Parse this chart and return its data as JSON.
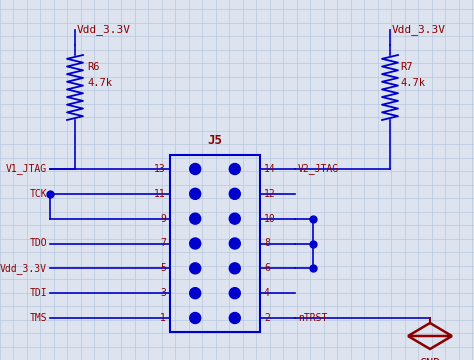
{
  "bg_color": "#dde4f0",
  "grid_color": "#b8c8e0",
  "wire_color": "#0000cc",
  "label_color": "#8b0000",
  "connector_color": "#0000cc",
  "dot_color": "#0000cc",
  "title": "J5",
  "left_pin_numbers": [
    13,
    11,
    9,
    7,
    5,
    3,
    1
  ],
  "right_pin_numbers": [
    14,
    12,
    10,
    8,
    6,
    4,
    2
  ],
  "left_labels": [
    "V1_JTAG",
    "TCK",
    "",
    "TDO",
    "Vdd_3.3V",
    "TDI",
    "TMS"
  ],
  "right_labels": [
    "V2_JTAG",
    "",
    "",
    "",
    "",
    "",
    "nTRST"
  ],
  "figsize": [
    4.74,
    3.6
  ],
  "dpi": 100
}
